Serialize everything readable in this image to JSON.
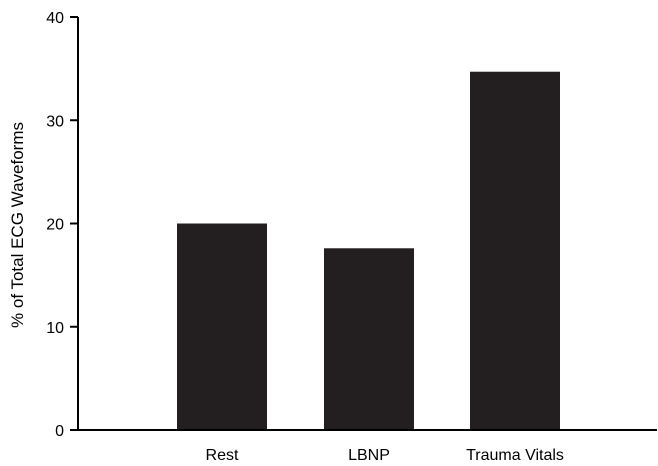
{
  "chart_data": {
    "type": "bar",
    "categories": [
      "Rest",
      "LBNP",
      "Trauma Vitals"
    ],
    "values": [
      20.0,
      17.6,
      34.7
    ],
    "title": "",
    "xlabel": "",
    "ylabel": "% of Total ECG Waveforms",
    "ylim": [
      0,
      40
    ],
    "yticks": [
      0,
      10,
      20,
      30,
      40
    ],
    "grid": false,
    "bar_color": "#231f20"
  }
}
